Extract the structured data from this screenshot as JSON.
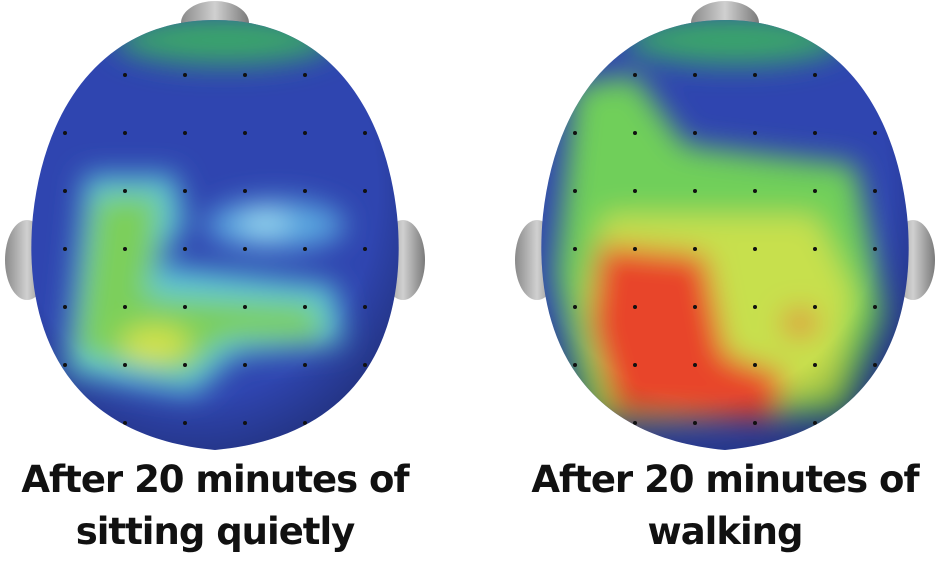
{
  "panels": [
    {
      "caption": [
        "After 20 minutes of",
        "sitting quietly"
      ]
    },
    {
      "caption": [
        "After 20 minutes of",
        "walking"
      ]
    }
  ]
}
